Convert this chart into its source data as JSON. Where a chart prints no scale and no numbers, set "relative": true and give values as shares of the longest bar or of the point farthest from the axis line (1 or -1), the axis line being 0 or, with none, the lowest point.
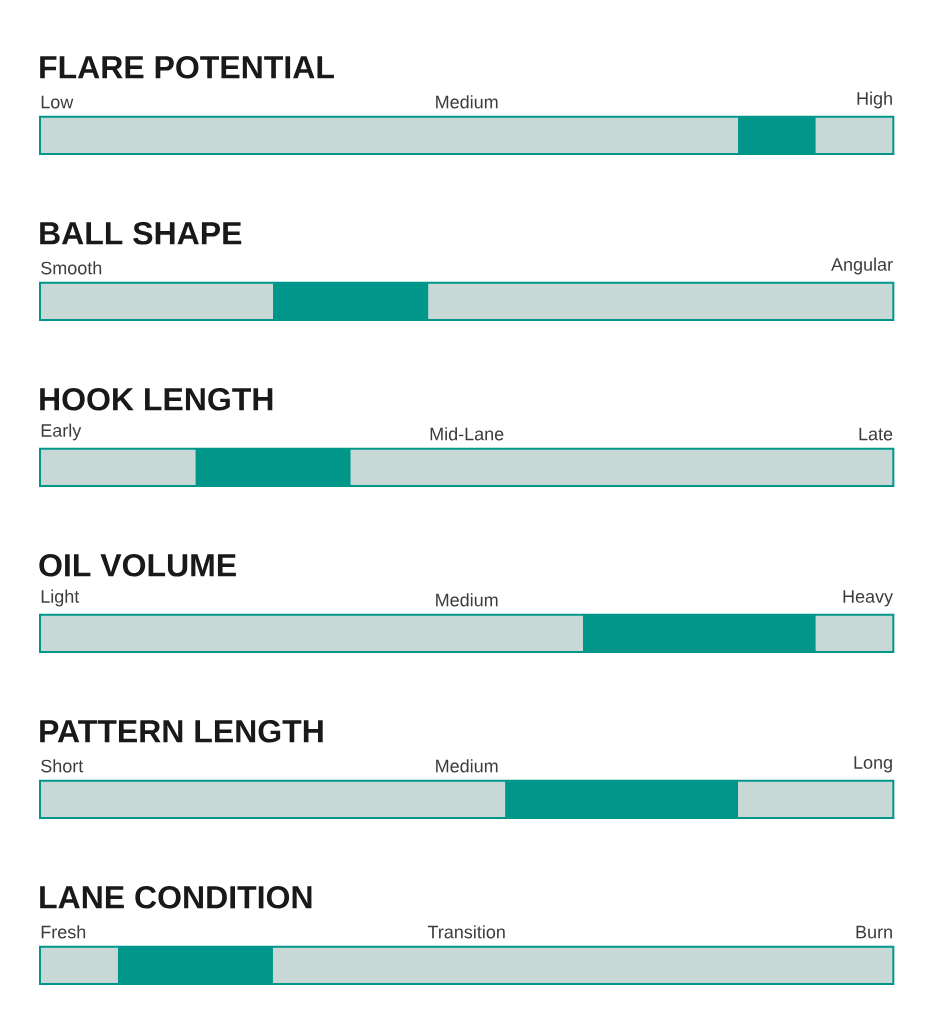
{
  "chart_data": [
    {
      "type": "bar",
      "orientation": "horizontal",
      "stacked": true,
      "relative": true,
      "title": "FLARE POTENTIAL",
      "annotations": [
        "Low",
        "Medium",
        "High"
      ],
      "categories": [
        null
      ],
      "series": [
        {
          "color": "#c8d8d6",
          "values": [
            0.818
          ]
        },
        {
          "color": "#00968a",
          "values": [
            0.091
          ]
        },
        {
          "color": "#c8d8d6",
          "values": [
            0.091
          ]
        }
      ]
    },
    {
      "type": "bar",
      "orientation": "horizontal",
      "stacked": true,
      "relative": true,
      "title": "BALL SHAPE",
      "annotations": [
        "Smooth",
        "Angular"
      ],
      "categories": [
        null
      ],
      "series": [
        {
          "color": "#c8d8d6",
          "values": [
            0.273
          ]
        },
        {
          "color": "#00968a",
          "values": [
            0.182
          ]
        },
        {
          "color": "#c8d8d6",
          "values": [
            0.545
          ]
        }
      ]
    },
    {
      "type": "bar",
      "orientation": "horizontal",
      "stacked": true,
      "relative": true,
      "title": "HOOK LENGTH",
      "annotations": [
        "Early",
        "Mid-Lane",
        "Late"
      ],
      "categories": [
        null
      ],
      "series": [
        {
          "color": "#c8d8d6",
          "values": [
            0.182
          ]
        },
        {
          "color": "#00968a",
          "values": [
            0.182
          ]
        },
        {
          "color": "#c8d8d6",
          "values": [
            0.636
          ]
        }
      ]
    },
    {
      "type": "bar",
      "orientation": "horizontal",
      "stacked": true,
      "relative": true,
      "title": "OIL VOLUME",
      "annotations": [
        "Light",
        "Medium",
        "Heavy"
      ],
      "categories": [
        null
      ],
      "series": [
        {
          "color": "#c8d8d6",
          "values": [
            0.636
          ]
        },
        {
          "color": "#00968a",
          "values": [
            0.273
          ]
        },
        {
          "color": "#c8d8d6",
          "values": [
            0.091
          ]
        }
      ]
    },
    {
      "type": "bar",
      "orientation": "horizontal",
      "stacked": true,
      "relative": true,
      "title": "PATTERN LENGTH",
      "annotations": [
        "Short",
        "Medium",
        "Long"
      ],
      "categories": [
        null
      ],
      "series": [
        {
          "color": "#c8d8d6",
          "values": [
            0.545
          ]
        },
        {
          "color": "#00968a",
          "values": [
            0.273
          ]
        },
        {
          "color": "#c8d8d6",
          "values": [
            0.182
          ]
        }
      ]
    },
    {
      "type": "bar",
      "orientation": "horizontal",
      "stacked": true,
      "relative": true,
      "title": "LANE CONDITION",
      "annotations": [
        "Fresh",
        "Transition",
        "Burn"
      ],
      "categories": [
        null
      ],
      "series": [
        {
          "color": "#c8d8d6",
          "values": [
            0.091
          ]
        },
        {
          "color": "#00968a",
          "values": [
            0.182
          ]
        },
        {
          "color": "#c8d8d6",
          "values": [
            0.727
          ]
        }
      ]
    }
  ]
}
